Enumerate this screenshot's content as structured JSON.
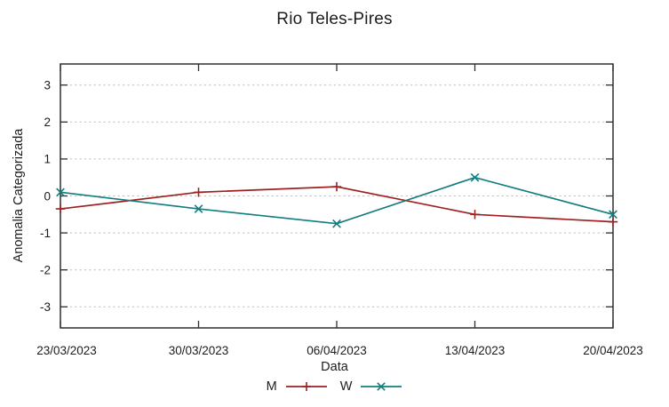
{
  "chart_data": {
    "type": "line",
    "title": "Rio Teles-Pires",
    "xlabel": "Data",
    "ylabel": "Anomalia Categorizada",
    "categories": [
      "23/03/2023",
      "30/03/2023",
      "06/04/2023",
      "13/04/2023",
      "20/04/2023"
    ],
    "series": [
      {
        "name": "M",
        "color": "#a02020",
        "marker": "plus",
        "values": [
          -0.35,
          0.1,
          0.25,
          -0.5,
          -0.7
        ]
      },
      {
        "name": "W",
        "color": "#107e7e",
        "marker": "cross",
        "values": [
          0.1,
          -0.35,
          -0.75,
          0.5,
          -0.5
        ]
      }
    ],
    "yticks": [
      3,
      2,
      1,
      0,
      -1,
      -2,
      -3
    ],
    "ylim": [
      -3.57,
      3.57
    ],
    "grid": "horizontal-dotted",
    "legend_position": "bottom-center",
    "colors": {
      "frame": "#2e2e2e",
      "grid": "#b8b8b8",
      "text": "#1c1c1c",
      "background": "#ffffff"
    }
  }
}
